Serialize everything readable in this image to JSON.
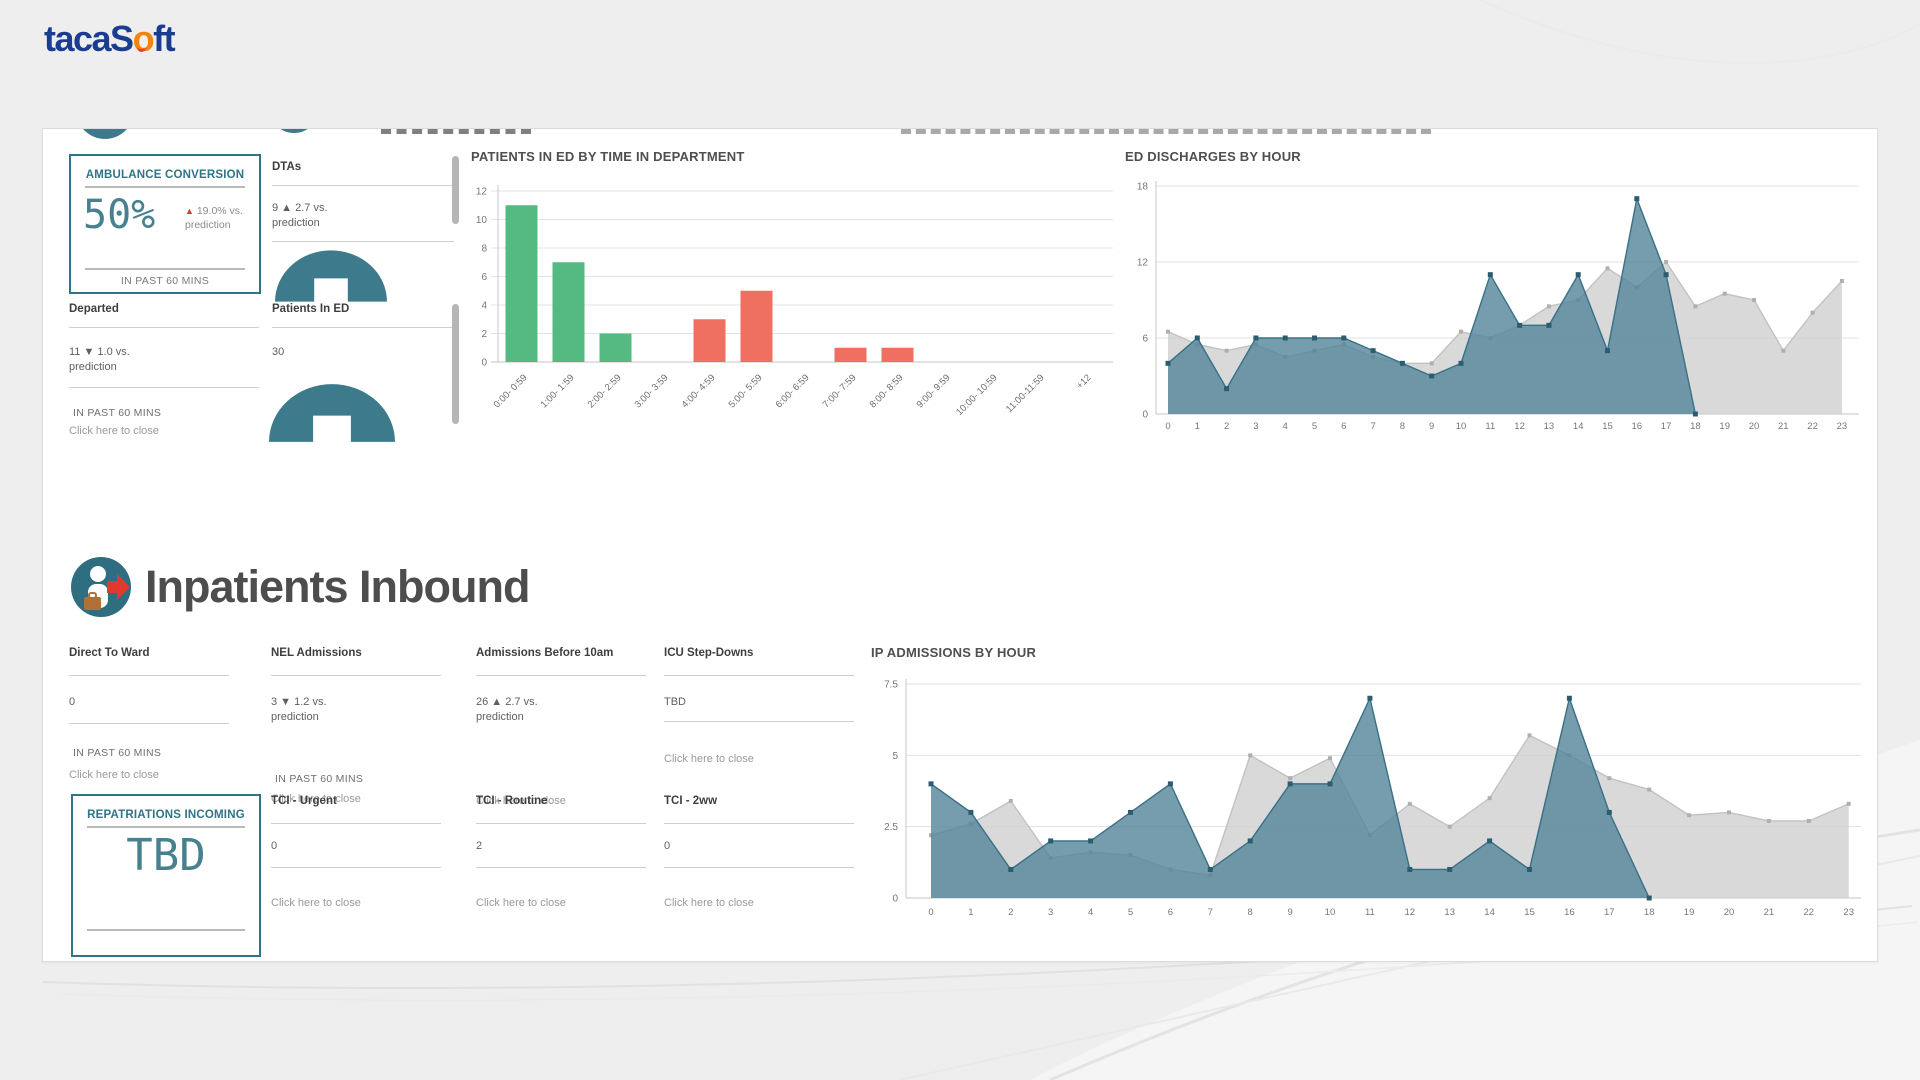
{
  "logo": {
    "pre": "tacaS",
    "accent": "o",
    "post": "ft"
  },
  "ed": {
    "ambulance": {
      "title": "AMBULANCE CONVERSION",
      "value": "50%",
      "delta_icon": "▲",
      "delta": "19.0% vs.",
      "delta2": "prediction",
      "footer": "IN PAST 60 MINS"
    },
    "departed": {
      "label": "Departed",
      "line1": "11 ▼ 1.0 vs.",
      "line2": "prediction",
      "past": "IN PAST 60 MINS",
      "close": "Click here to close"
    },
    "dtas": {
      "label": "DTAs",
      "line1": "9 ▲ 2.7 vs.",
      "line2": "prediction"
    },
    "patients": {
      "label": "Patients In ED",
      "value": "30"
    }
  },
  "inpatients": {
    "title": "Inpatients Inbound",
    "cards": [
      {
        "label": "Direct To Ward",
        "line1": "0",
        "line2": "",
        "past": "IN PAST 60 MINS",
        "close": "Click here to close"
      },
      {
        "label": "NEL Admissions",
        "line1": "3 ▼ 1.2 vs.",
        "line2": "prediction",
        "past": "IN PAST 60 MINS",
        "close": "Click here to close"
      },
      {
        "label": "Admissions Before 10am",
        "line1": "26 ▲ 2.7 vs.",
        "line2": "prediction",
        "past": "",
        "close": "Click here to close"
      },
      {
        "label": "ICU Step-Downs",
        "line1": "TBD",
        "line2": "",
        "past": "",
        "close": "Click here to close"
      }
    ],
    "repatriations": {
      "title": "REPATRIATIONS INCOMING",
      "value": "TBD"
    },
    "tci": [
      {
        "label": "TCI - Urgent",
        "value": "0",
        "close": "Click here to close"
      },
      {
        "label": "TCI - Routine",
        "value": "2",
        "close": "Click here to close"
      },
      {
        "label": "TCI - 2ww",
        "value": "0",
        "close": "Click here to close"
      }
    ]
  },
  "colors": {
    "teal": "#3C7A8C",
    "teal_fill": "#52859A",
    "green": "#55B982",
    "red": "#EF6F61",
    "gray_series": "#CECECE",
    "accent_red": "#D63B30",
    "navy": "#1B3D91",
    "orange": "#F5820B"
  },
  "chart_data": [
    {
      "type": "bar",
      "title": "PATIENTS IN ED BY TIME IN DEPARTMENT",
      "categories": [
        "0:00- 0:59",
        "1:00- 1:59",
        "2:00- 2:59",
        "3:00- 3:59",
        "4:00- 4:59",
        "5:00- 5:59",
        "6:00- 6:59",
        "7:00- 7:59",
        "8:00- 8:59",
        "9:00- 9:59",
        "10:00- 10:59",
        "11:00-11:59",
        "+12"
      ],
      "values": [
        11,
        7,
        2,
        0,
        3,
        5,
        0,
        1,
        1,
        0,
        0,
        0,
        0
      ],
      "bar_colors": [
        "green",
        "green",
        "green",
        "green",
        "red",
        "red",
        "red",
        "red",
        "red",
        "red",
        "red",
        "red",
        "red"
      ],
      "xlabel": "",
      "ylabel": "",
      "ylim": [
        0,
        12
      ],
      "yticks": [
        0,
        2,
        4,
        6,
        8,
        10,
        12
      ],
      "grid": true,
      "legend_position": "none"
    },
    {
      "type": "area",
      "title": "ED DISCHARGES BY HOUR",
      "x": [
        0,
        1,
        2,
        3,
        4,
        5,
        6,
        7,
        8,
        9,
        10,
        11,
        12,
        13,
        14,
        15,
        16,
        17,
        18,
        19,
        20,
        21,
        22,
        23
      ],
      "series": [
        {
          "name": "predicted",
          "color": "gray",
          "values": [
            6.5,
            5.5,
            5,
            5.5,
            4.5,
            5,
            5.5,
            4.5,
            4,
            4,
            6.5,
            6,
            7,
            8.5,
            9,
            11.5,
            10,
            12,
            8.5,
            9.5,
            9,
            5,
            8,
            10.5
          ]
        },
        {
          "name": "actual",
          "color": "teal",
          "values": [
            4,
            6,
            2,
            6,
            6,
            6,
            6,
            5,
            4,
            3,
            4,
            11,
            7,
            7,
            11,
            5,
            17,
            11,
            0,
            null,
            null,
            null,
            null,
            null
          ]
        }
      ],
      "xlabel": "",
      "ylabel": "",
      "ylim": [
        0,
        18
      ],
      "yticks": [
        0,
        6,
        12,
        18
      ],
      "grid": true,
      "legend_position": "none"
    },
    {
      "type": "area",
      "title": "IP ADMISSIONS BY HOUR",
      "x": [
        0,
        1,
        2,
        3,
        4,
        5,
        6,
        7,
        8,
        9,
        10,
        11,
        12,
        13,
        14,
        15,
        16,
        17,
        18,
        19,
        20,
        21,
        22,
        23
      ],
      "series": [
        {
          "name": "predicted",
          "color": "gray",
          "values": [
            2.2,
            2.6,
            3.4,
            1.4,
            1.6,
            1.5,
            1,
            0.8,
            5,
            4.2,
            4.9,
            2.2,
            3.3,
            2.5,
            3.5,
            5.7,
            5,
            4.2,
            3.8,
            2.9,
            3,
            2.7,
            2.7,
            3.3
          ]
        },
        {
          "name": "actual",
          "color": "teal",
          "values": [
            4,
            3,
            1,
            2,
            2,
            3,
            4,
            1,
            2,
            4,
            4,
            7,
            1,
            1,
            2,
            1,
            7,
            3,
            0,
            null,
            null,
            null,
            null,
            null
          ]
        }
      ],
      "xlabel": "",
      "ylabel": "",
      "ylim": [
        0,
        7.5
      ],
      "yticks": [
        0,
        2.5,
        5,
        7.5
      ],
      "grid": true,
      "legend_position": "none"
    }
  ]
}
